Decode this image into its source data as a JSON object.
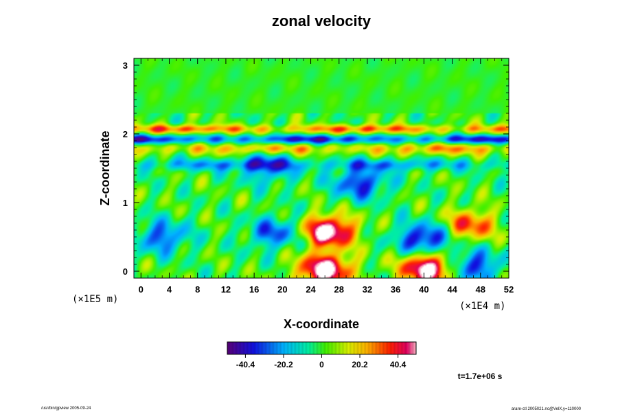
{
  "chart_data": {
    "type": "heatmap",
    "title": "zonal velocity",
    "xlabel": "X-coordinate",
    "ylabel": "Z-coordinate",
    "x_scale_note": "(×1E4 m)",
    "y_scale_note": "(×1E5 m)",
    "xlim": [
      -1,
      52
    ],
    "ylim": [
      -0.1,
      3.1
    ],
    "x_ticks": [
      "0",
      "4",
      "8",
      "12",
      "16",
      "20",
      "24",
      "28",
      "32",
      "36",
      "40",
      "44",
      "48",
      "52"
    ],
    "y_ticks": [
      "0",
      "1",
      "2",
      "3"
    ],
    "colorbar": {
      "range": [
        -50,
        50
      ],
      "tick_labels": [
        "-40.4",
        "-20.2",
        "0",
        "20.2",
        "40.4"
      ],
      "tick_values": [
        -40.4,
        -20.2,
        0,
        20.2,
        40.4
      ]
    },
    "time_label": "t=1.7e+06 s",
    "field_features": [
      {
        "x": 26.5,
        "z": 0.58,
        "value": 60,
        "desc": "strong positive cell (saturated)"
      },
      {
        "x": 46.5,
        "z": 0.67,
        "value": 35
      },
      {
        "x": 26,
        "z": 0.02,
        "value": 60
      },
      {
        "x": 40.5,
        "z": 0.04,
        "value": 60
      },
      {
        "x": 40,
        "z": 0.47,
        "value": -42
      },
      {
        "x": 47,
        "z": 0.08,
        "value": -35
      },
      {
        "x": 3,
        "z": 0.5,
        "value": -30
      },
      {
        "x": 19,
        "z": 0.56,
        "value": -30
      },
      {
        "x": 31,
        "z": 1.28,
        "value": -35
      },
      {
        "x": 18,
        "z": 1.52,
        "value": -28
      }
    ],
    "bands": [
      {
        "z": 2.07,
        "value": 32,
        "desc": "positive jet layer"
      },
      {
        "z": 1.92,
        "value": -38,
        "desc": "negative jet layer"
      },
      {
        "z": 1.78,
        "value": 25
      },
      {
        "z": 1.55,
        "value": -22
      }
    ]
  },
  "footer": {
    "left": "/usr/bin/gpview 2005-09-24",
    "right": "arare-ctl 2005021.nc@VelX,y=110000"
  }
}
